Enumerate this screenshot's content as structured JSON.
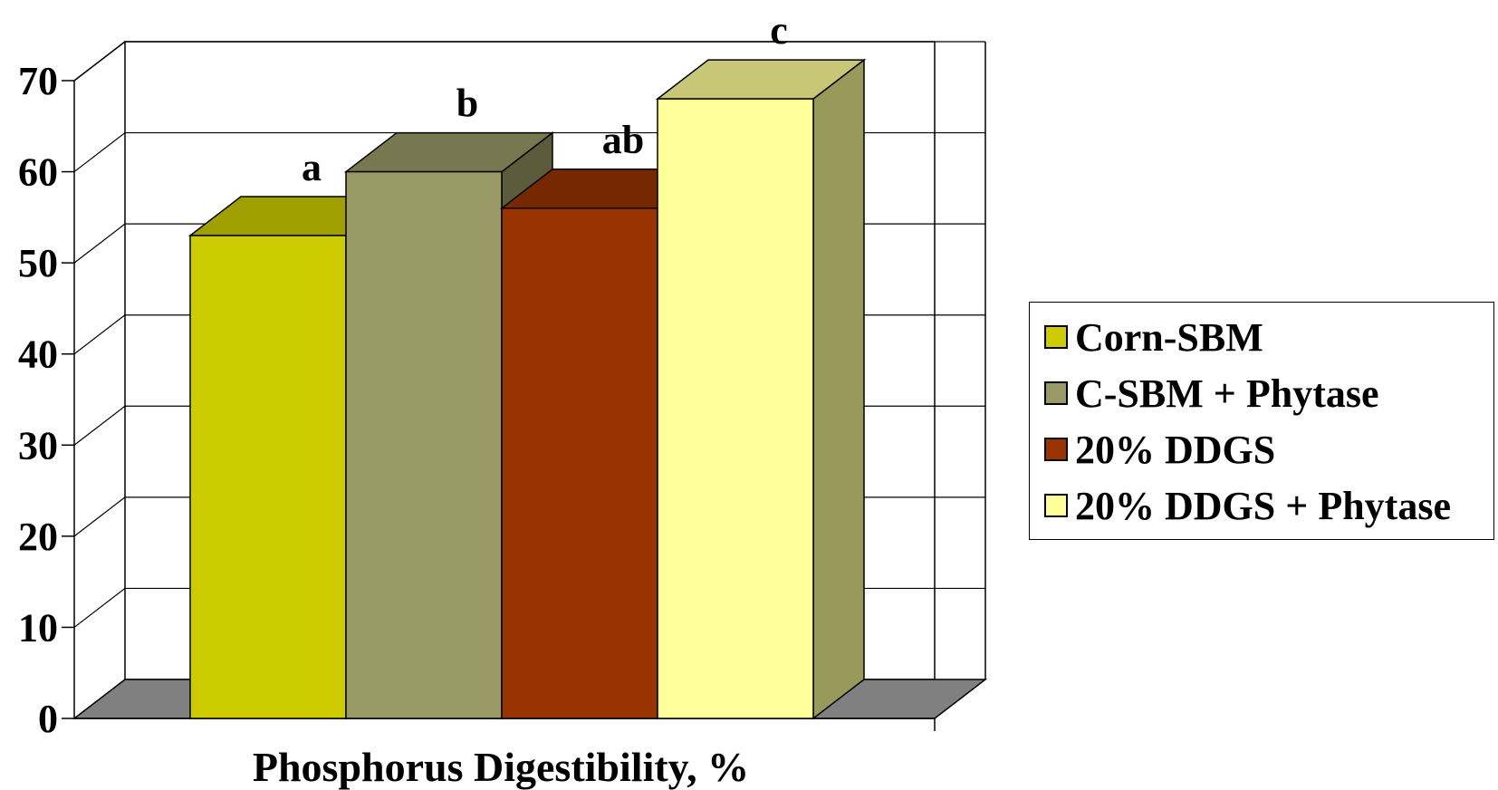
{
  "chart_data": {
    "type": "bar",
    "title": "",
    "xlabel": "Phosphorus Digestibility, %",
    "ylabel": "",
    "ylim": [
      0,
      70
    ],
    "yticks": [
      0,
      10,
      20,
      30,
      40,
      50,
      60,
      70
    ],
    "grid": true,
    "legend_position": "right",
    "series": [
      {
        "name": "Corn-SBM",
        "value": 53,
        "annotation": "a",
        "color": "#cccc00"
      },
      {
        "name": "C-SBM + Phytase",
        "value": 60,
        "annotation": "b",
        "color": "#999966"
      },
      {
        "name": "20% DDGS",
        "value": 56,
        "annotation": "ab",
        "color": "#993300"
      },
      {
        "name": "20% DDGS + Phytase",
        "value": 68,
        "annotation": "c",
        "color": "#ffff99"
      }
    ]
  }
}
